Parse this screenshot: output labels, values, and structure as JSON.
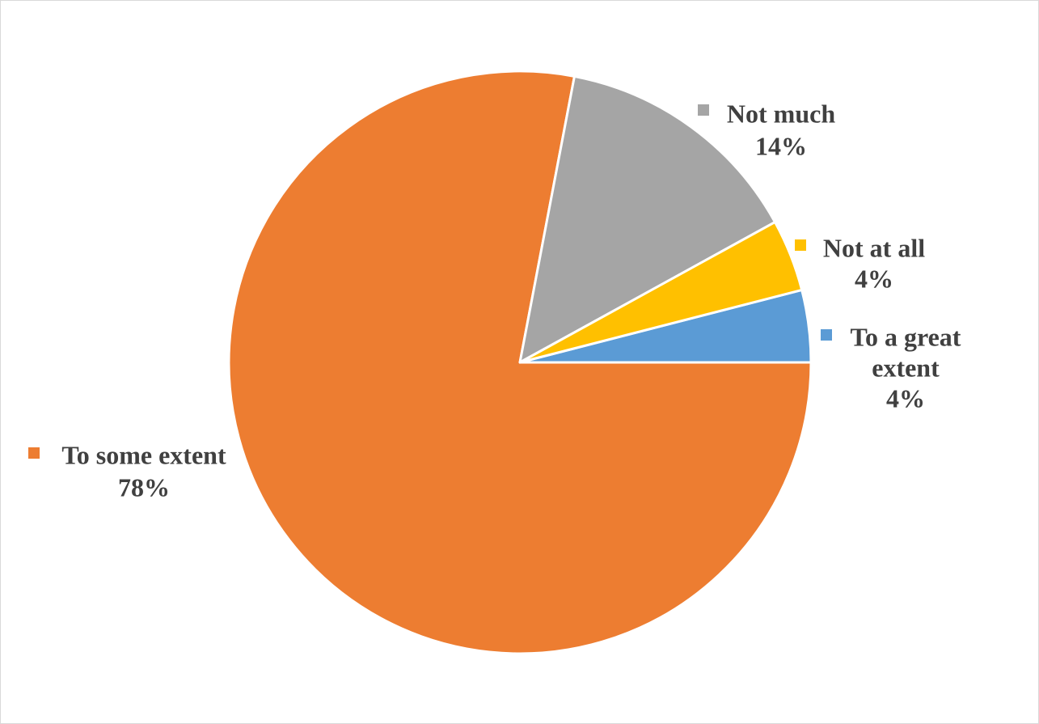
{
  "chart_data": {
    "type": "pie",
    "title": "",
    "start_angle_deg": 0,
    "slices": [
      {
        "name": "To a great extent",
        "value": 4,
        "label_lines": [
          "To a great",
          "extent"
        ],
        "pct_label": "4%",
        "color": "#5b9bd5"
      },
      {
        "name": "To some extent",
        "value": 78,
        "label_lines": [
          "To some extent"
        ],
        "pct_label": "78%",
        "color": "#ed7d31"
      },
      {
        "name": "Not much",
        "value": 14,
        "label_lines": [
          "Not much"
        ],
        "pct_label": "14%",
        "color": "#a5a5a5"
      },
      {
        "name": "Not at all",
        "value": 4,
        "label_lines": [
          "Not at all"
        ],
        "pct_label": "4%",
        "color": "#ffc000"
      }
    ],
    "legend": "none",
    "data_labels": "outside-with-category"
  }
}
